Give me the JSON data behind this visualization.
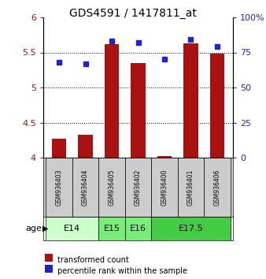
{
  "title": "GDS4591 / 1417811_at",
  "samples": [
    "GSM936403",
    "GSM936404",
    "GSM936405",
    "GSM936402",
    "GSM936400",
    "GSM936401",
    "GSM936406"
  ],
  "bar_values": [
    4.27,
    4.33,
    5.62,
    5.35,
    4.02,
    5.63,
    5.48
  ],
  "dot_values": [
    68,
    67,
    83,
    82,
    70,
    84,
    79
  ],
  "bar_bottom": 4.0,
  "ylim_left": [
    4.0,
    6.0
  ],
  "ylim_right": [
    0,
    100
  ],
  "yticks_left": [
    4.0,
    4.5,
    5.0,
    5.5,
    6.0
  ],
  "yticks_right": [
    0,
    25,
    50,
    75,
    100
  ],
  "ytick_labels_right": [
    "0",
    "25",
    "50",
    "75",
    "100%"
  ],
  "bar_color": "#aa1111",
  "dot_color": "#2222cc",
  "age_groups": [
    {
      "label": "E14",
      "start": 0,
      "end": 2,
      "color": "#ccffcc"
    },
    {
      "label": "E15",
      "start": 2,
      "end": 3,
      "color": "#77ee77"
    },
    {
      "label": "E16",
      "start": 3,
      "end": 4,
      "color": "#77ee77"
    },
    {
      "label": "E17.5",
      "start": 4,
      "end": 7,
      "color": "#44cc44"
    }
  ],
  "legend_bar_label": "transformed count",
  "legend_dot_label": "percentile rank within the sample",
  "age_label": "age",
  "bar_width": 0.55,
  "sample_cell_color": "#cccccc",
  "fig_width": 3.38,
  "fig_height": 3.54,
  "dpi": 100
}
